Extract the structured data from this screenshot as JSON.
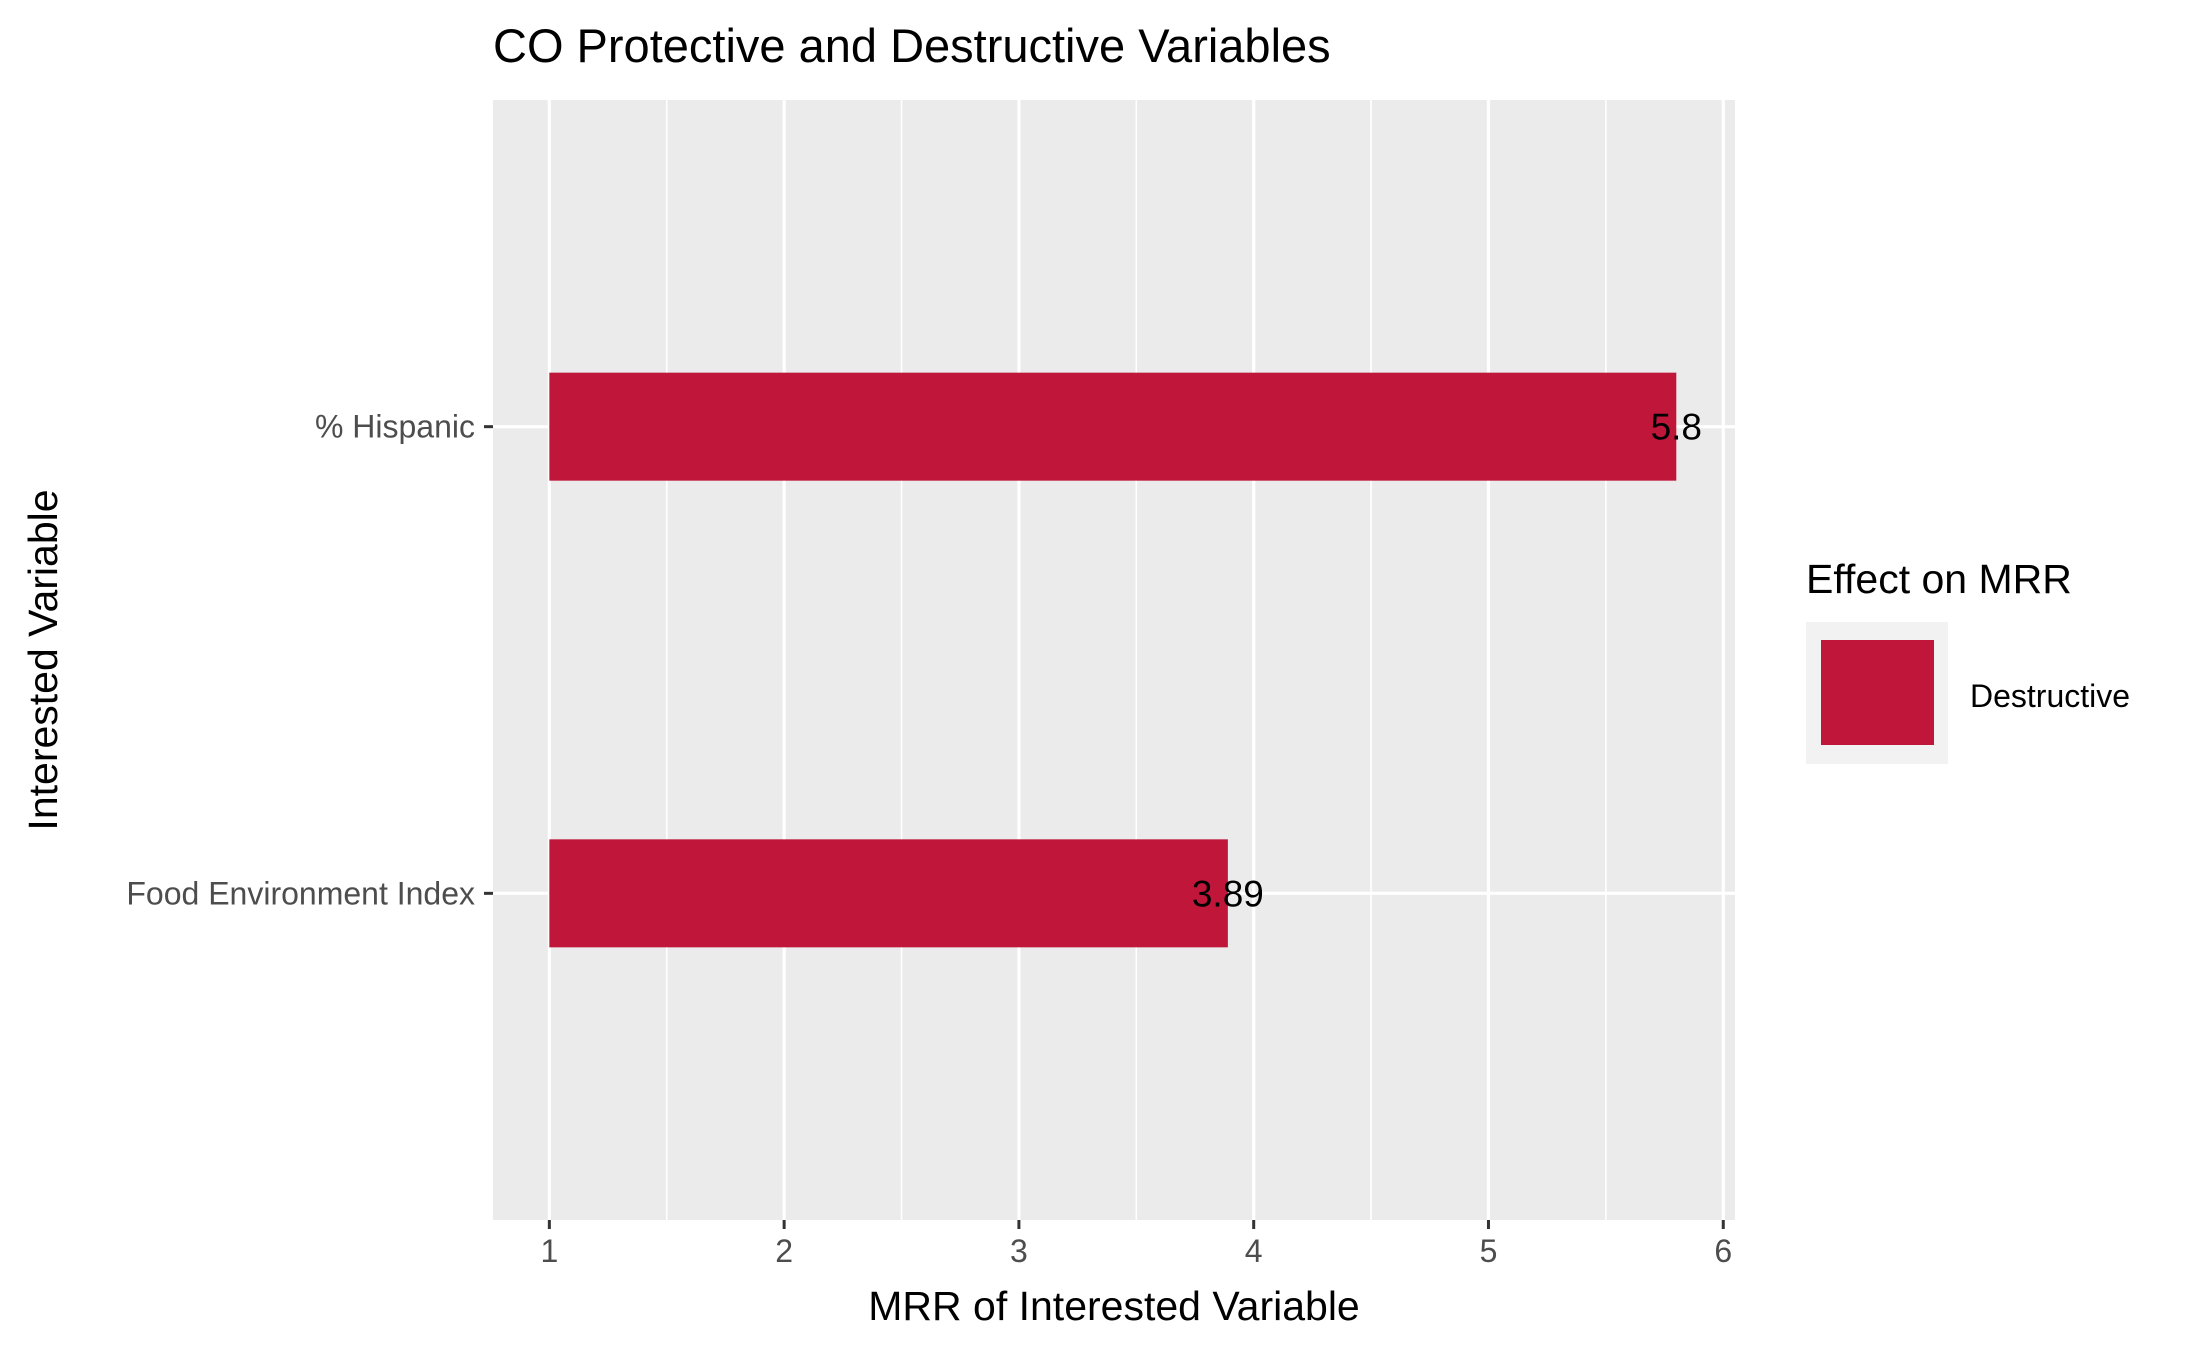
{
  "chart_data": {
    "type": "bar",
    "orientation": "horizontal",
    "title": "CO Protective and Destructive Variables",
    "xlabel": "MRR of Interested Variable",
    "ylabel": "Interested Variable",
    "categories": [
      "% Hispanic",
      "Food Environment Index"
    ],
    "values": [
      5.8,
      3.89
    ],
    "value_labels": [
      "5.8",
      "3.89"
    ],
    "bar_base": 1,
    "xlim": [
      0.76,
      6.05
    ],
    "xticks": [
      1,
      2,
      3,
      4,
      5,
      6
    ],
    "xtick_labels": [
      "1",
      "2",
      "3",
      "4",
      "5",
      "6"
    ],
    "grid": true,
    "legend": {
      "title": "Effect on MRR",
      "position": "right",
      "entries": [
        {
          "label": "Destructive",
          "color": "#c0163a"
        }
      ]
    },
    "colors": {
      "bar": "#c0163a",
      "panel": "#ebebeb",
      "grid": "#ffffff",
      "legend_key_bg": "#f2f2f2"
    }
  }
}
